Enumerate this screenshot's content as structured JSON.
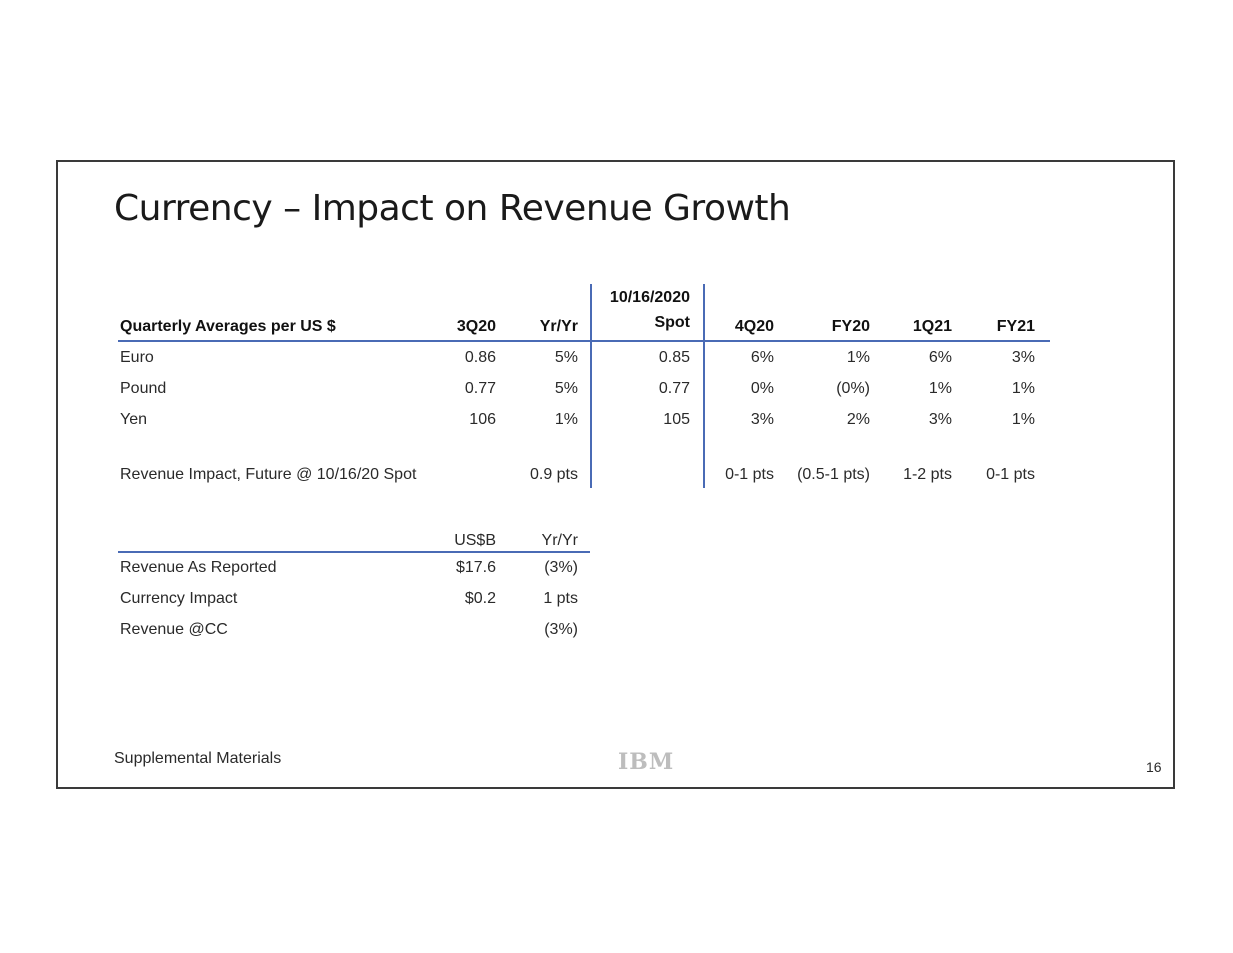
{
  "slide": {
    "title": "Currency – Impact on Revenue Growth",
    "footer": "Supplemental Materials",
    "logo": "IBM",
    "page_number": "16"
  },
  "currency_table": {
    "spot_header_line1": "10/16/2020",
    "headers": [
      "Quarterly Averages per US $",
      "3Q20",
      "Yr/Yr",
      "Spot",
      "4Q20",
      "FY20",
      "1Q21",
      "FY21"
    ],
    "rows": [
      [
        "Euro",
        "0.86",
        "5%",
        "0.85",
        "6%",
        "1%",
        "6%",
        "3%"
      ],
      [
        "Pound",
        "0.77",
        "5%",
        "0.77",
        "0%",
        "(0%)",
        "1%",
        "1%"
      ],
      [
        "Yen",
        "106",
        "1%",
        "105",
        "3%",
        "2%",
        "3%",
        "1%"
      ]
    ],
    "impact_row": {
      "label": "Revenue Impact, Future @ 10/16/20 Spot",
      "yr_yr": "0.9 pts",
      "q4_20": "0-1 pts",
      "fy20": "(0.5-1 pts)",
      "q1_21": "1-2 pts",
      "fy21": "0-1 pts"
    }
  },
  "revenue_table": {
    "headers": [
      "US$B",
      "Yr/Yr"
    ],
    "rows": [
      [
        "Revenue As Reported",
        "$17.6",
        "(3%)"
      ],
      [
        "Currency Impact",
        "$0.2",
        "1 pts"
      ],
      [
        "Revenue @CC",
        "",
        "(3%)"
      ]
    ]
  }
}
